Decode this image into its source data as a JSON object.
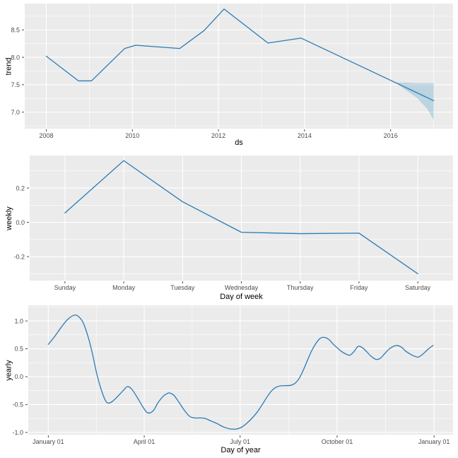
{
  "figure": {
    "background": "#FFFFFF",
    "panel_bg": "#EBEBEB",
    "grid_color": "#FFFFFF",
    "tick_mark_color": "#333333",
    "tick_label_color": "#4D4D4D",
    "axis_title_color": "#000000",
    "line_color": "#2B7BB5",
    "ribbon_rgba": "rgba(0,114,178,0.20)"
  },
  "chart_data": [
    {
      "type": "line",
      "title": "",
      "xlabel": "ds",
      "ylabel": "trend",
      "legend": "none",
      "grid": true,
      "xlim": [
        2007.5,
        2017.45
      ],
      "ylim": [
        6.7,
        8.98
      ],
      "xticks": {
        "values": [
          2008,
          2010,
          2012,
          2014,
          2016
        ],
        "labels": [
          "2008",
          "2010",
          "2012",
          "2014",
          "2016"
        ],
        "minor": [
          2009,
          2011,
          2013,
          2015,
          2017
        ]
      },
      "yticks": {
        "values": [
          7.0,
          7.5,
          8.0,
          8.5
        ],
        "labels": [
          "7.0",
          "7.5",
          "8.0",
          "8.5"
        ],
        "minor": [
          6.75,
          7.25,
          7.75,
          8.25,
          8.75
        ]
      },
      "series": [
        {
          "name": "trend",
          "smooth": false,
          "x": [
            2008.0,
            2008.75,
            2009.05,
            2009.82,
            2010.08,
            2011.1,
            2011.67,
            2012.13,
            2013.15,
            2013.92,
            2017.0
          ],
          "y": [
            8.02,
            7.57,
            7.57,
            8.16,
            8.22,
            8.16,
            8.49,
            8.88,
            8.26,
            8.35,
            7.21
          ]
        }
      ],
      "ribbon": {
        "name": "trend-uncertainty-interval",
        "x": [
          2016.12,
          2016.35,
          2016.6,
          2016.85,
          2017.0
        ],
        "upper": [
          7.54,
          7.54,
          7.53,
          7.53,
          7.53
        ],
        "lower": [
          7.54,
          7.4,
          7.27,
          7.06,
          6.86
        ]
      }
    },
    {
      "type": "line",
      "title": "",
      "xlabel": "Day of week",
      "ylabel": "weekly",
      "legend": "none",
      "grid": true,
      "categories": [
        "Sunday",
        "Monday",
        "Tuesday",
        "Wednesday",
        "Thursday",
        "Friday",
        "Saturday"
      ],
      "xlim": [
        0.4,
        7.6
      ],
      "ylim": [
        -0.34,
        0.39
      ],
      "xticks": {
        "values": [
          1,
          2,
          3,
          4,
          5,
          6,
          7
        ],
        "labels": [
          "Sunday",
          "Monday",
          "Tuesday",
          "Wednesday",
          "Thursday",
          "Friday",
          "Saturday"
        ],
        "minor": []
      },
      "yticks": {
        "values": [
          -0.2,
          0.0,
          0.2
        ],
        "labels": [
          "-0.2",
          "0.0",
          "0.2"
        ],
        "minor": [
          -0.3,
          -0.1,
          0.1,
          0.3
        ]
      },
      "series": [
        {
          "name": "weekly",
          "smooth": false,
          "x": [
            1,
            2,
            3,
            4,
            5,
            6,
            7
          ],
          "y": [
            0.055,
            0.36,
            0.12,
            -0.058,
            -0.066,
            -0.063,
            -0.3
          ]
        }
      ]
    },
    {
      "type": "line",
      "title": "",
      "xlabel": "Day of year",
      "ylabel": "yearly",
      "legend": "none",
      "grid": true,
      "xlim": [
        -19,
        384
      ],
      "ylim": [
        -1.04,
        1.28
      ],
      "xticks": {
        "values": [
          0,
          91,
          182,
          274,
          366
        ],
        "labels": [
          "January 01",
          "April 01",
          "July 01",
          "October 01",
          "January 01"
        ],
        "minor": [
          45.5,
          136.5,
          228,
          320
        ]
      },
      "yticks": {
        "values": [
          -1.0,
          -0.5,
          0.0,
          0.5,
          1.0
        ],
        "labels": [
          "-1.0",
          "-0.5",
          "0.0",
          "0.5",
          "1.0"
        ],
        "minor": [
          -0.75,
          -0.25,
          0.25,
          0.75,
          1.25
        ]
      },
      "series": [
        {
          "name": "yearly",
          "smooth": true,
          "x": [
            0,
            6,
            12,
            18,
            24,
            28,
            33,
            38,
            42,
            46,
            50,
            54,
            57,
            61,
            66,
            71,
            75,
            79,
            84,
            89,
            93,
            96,
            100,
            104,
            109,
            113,
            115,
            119,
            124,
            129,
            134,
            139,
            144,
            149,
            155,
            160,
            166,
            172,
            178,
            183,
            188,
            193,
            198,
            203,
            208,
            212,
            216,
            220,
            225,
            230,
            234,
            238,
            242,
            246,
            250,
            254,
            258,
            262,
            266,
            270,
            274,
            278,
            282,
            286,
            290,
            294,
            298,
            302,
            306,
            311,
            315,
            319,
            323,
            327,
            331,
            335,
            339,
            343,
            347,
            351,
            355,
            359,
            362,
            365
          ],
          "y": [
            0.58,
            0.72,
            0.88,
            1.02,
            1.1,
            1.09,
            0.97,
            0.7,
            0.4,
            0.05,
            -0.22,
            -0.42,
            -0.473,
            -0.44,
            -0.35,
            -0.25,
            -0.178,
            -0.22,
            -0.36,
            -0.52,
            -0.63,
            -0.651,
            -0.6,
            -0.47,
            -0.35,
            -0.3,
            -0.292,
            -0.33,
            -0.46,
            -0.6,
            -0.71,
            -0.74,
            -0.74,
            -0.75,
            -0.8,
            -0.84,
            -0.9,
            -0.935,
            -0.94,
            -0.91,
            -0.84,
            -0.75,
            -0.64,
            -0.5,
            -0.35,
            -0.25,
            -0.19,
            -0.165,
            -0.16,
            -0.155,
            -0.12,
            -0.03,
            0.12,
            0.3,
            0.47,
            0.6,
            0.69,
            0.705,
            0.67,
            0.59,
            0.52,
            0.455,
            0.41,
            0.385,
            0.45,
            0.545,
            0.52,
            0.45,
            0.37,
            0.31,
            0.33,
            0.41,
            0.49,
            0.54,
            0.56,
            0.53,
            0.46,
            0.41,
            0.37,
            0.352,
            0.4,
            0.47,
            0.52,
            0.56
          ]
        }
      ]
    }
  ]
}
